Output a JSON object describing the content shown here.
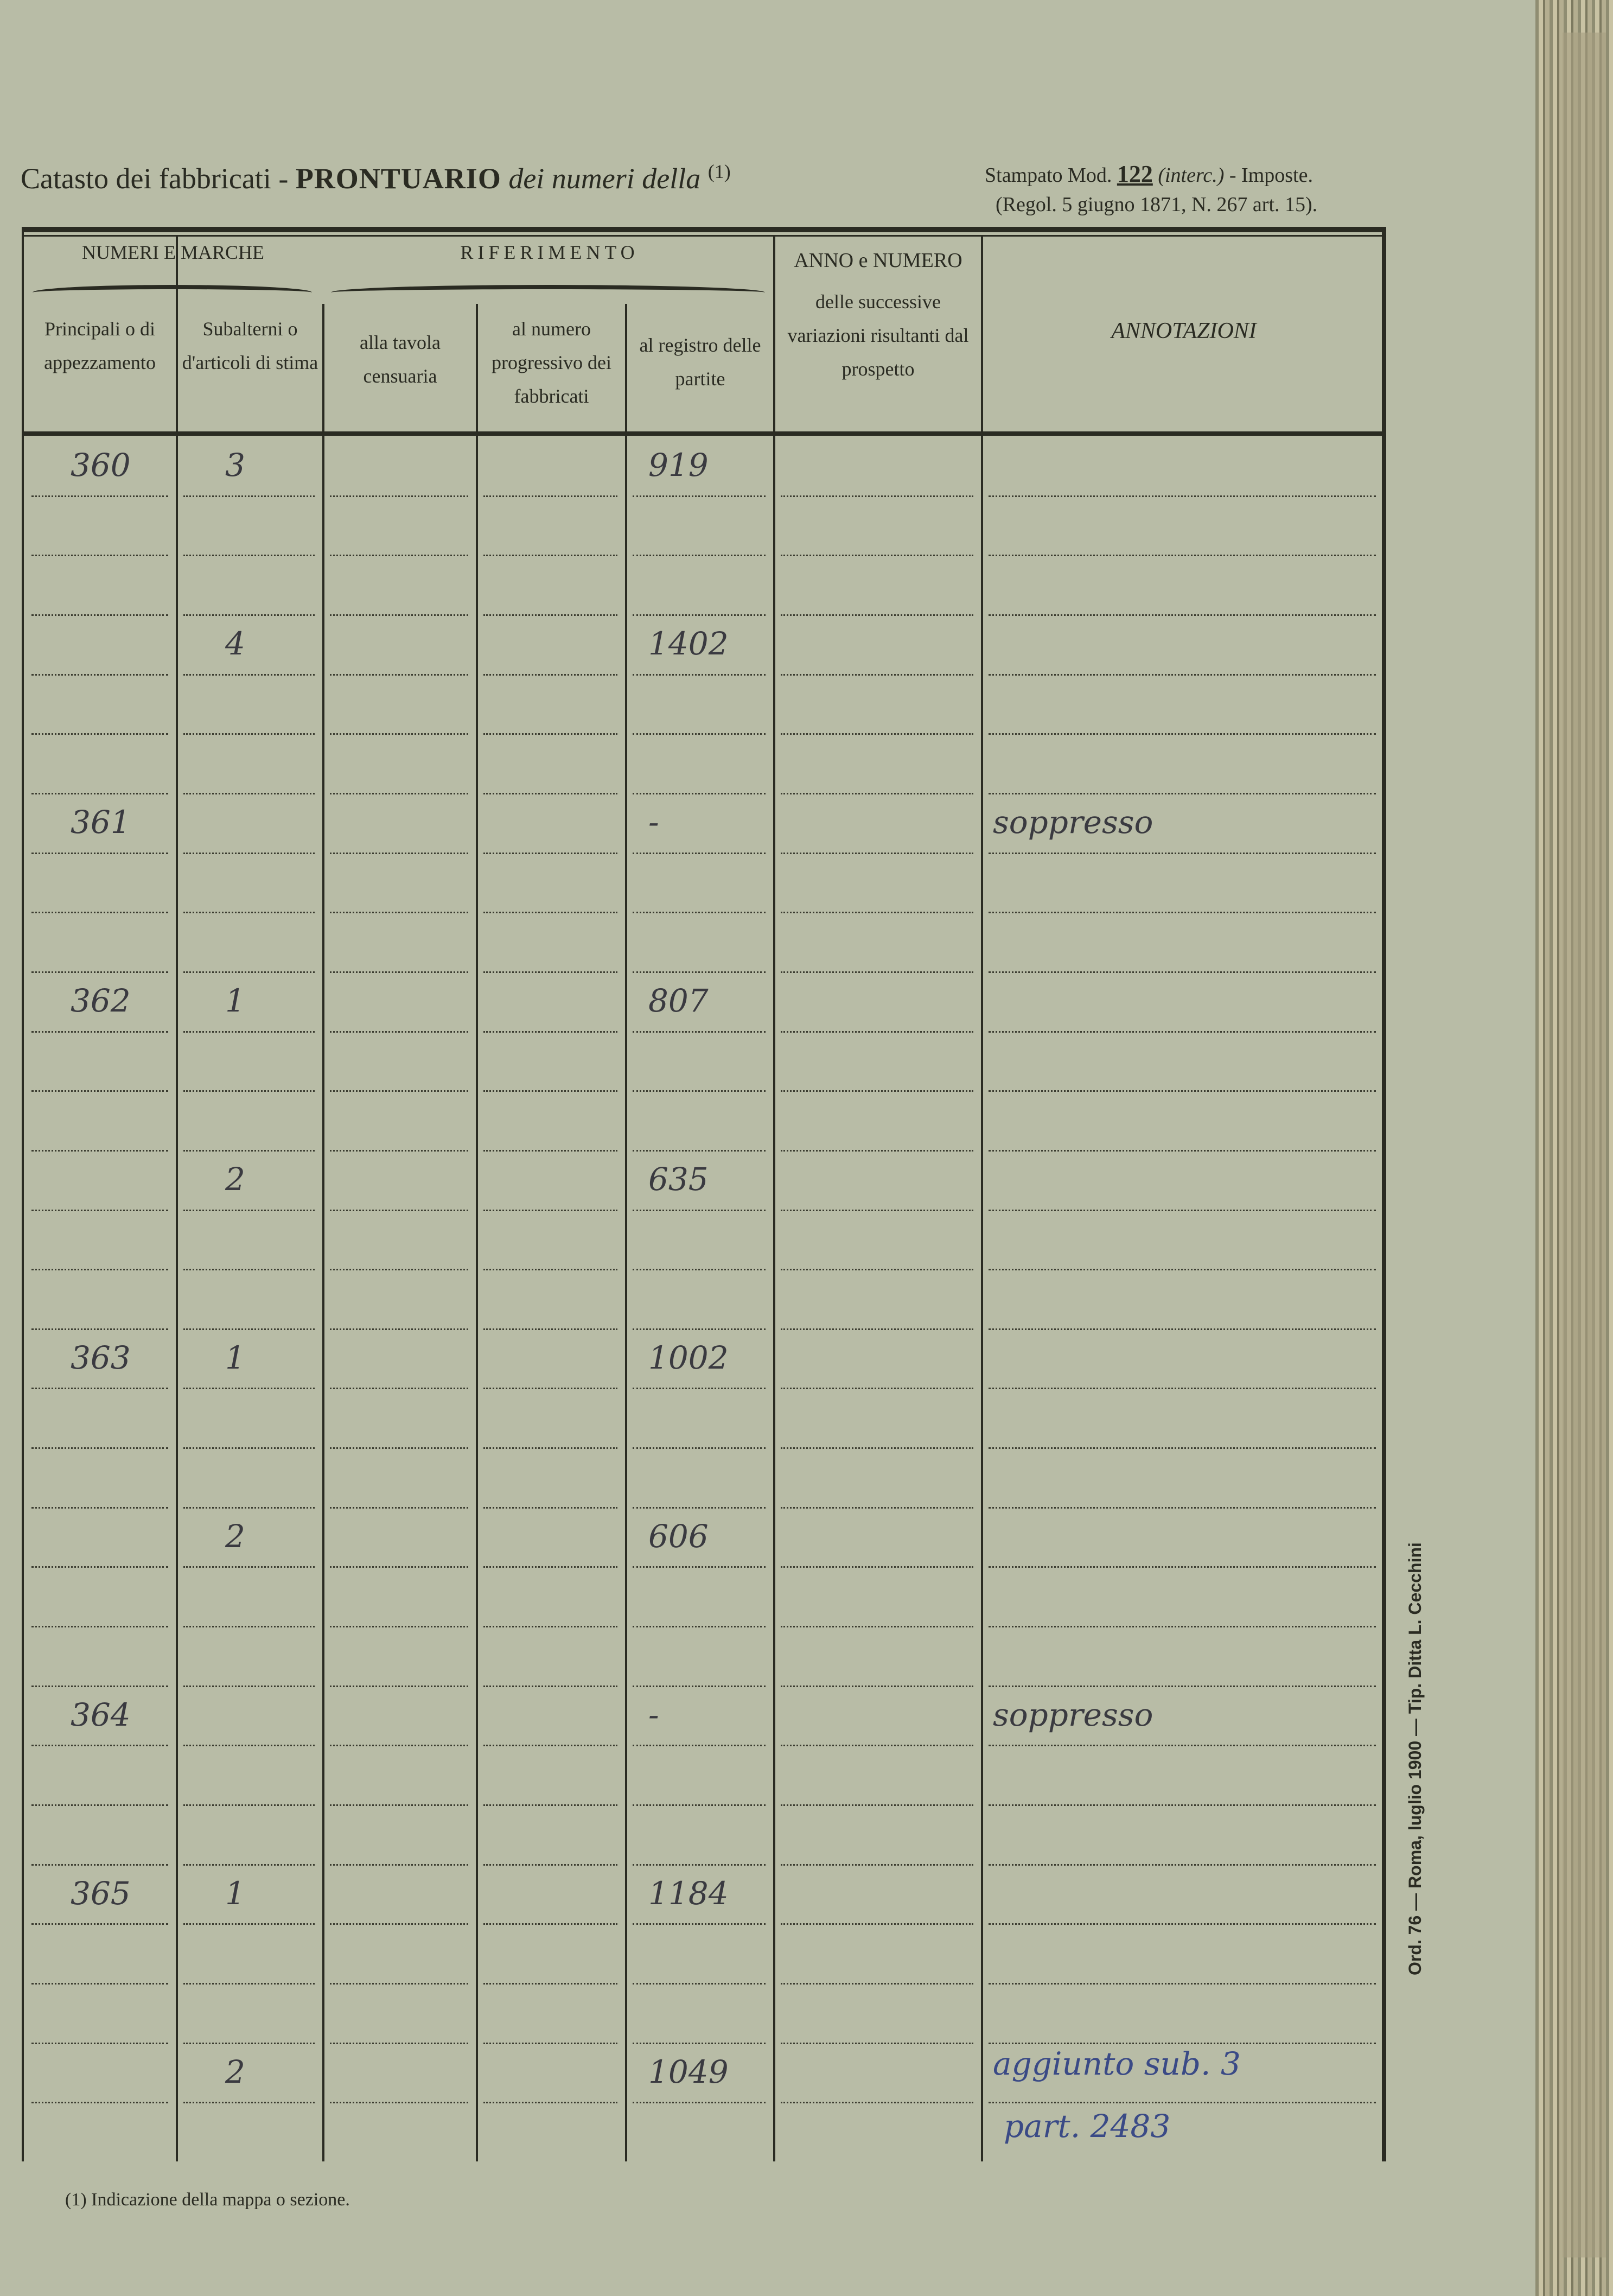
{
  "header": {
    "title_plain": "Catasto dei fabbricati -",
    "title_bold": "PRONTUARIO",
    "title_italic": "dei numeri della",
    "title_note": "(1)",
    "stamp_prefix": "Stampato Mod.",
    "stamp_number": "122",
    "stamp_italic": "(interc.)",
    "stamp_suffix": "- Imposte.",
    "regulation": "(Regol. 5 giugno 1871, N. 267 art. 15)."
  },
  "columns": {
    "group_numeri": "NUMERI E MARCHE",
    "group_riferimento": "RIFERIMENTO",
    "principali": "Principali o di appezzamento",
    "subalterni": "Subalterni o d'articoli di stima",
    "tavola": "alla tavola censuaria",
    "progressivo": "al numero progressivo dei fabbricati",
    "registro": "al registro delle partite",
    "anno": "ANNO e NUMERO",
    "anno_sub": "delle successive variazioni risultanti dal prospetto",
    "annotazioni": "ANNOTAZIONI"
  },
  "entries": [
    {
      "principale": "360",
      "subalterno": "3",
      "partita": "919",
      "annotazione": ""
    },
    {
      "principale": "",
      "subalterno": "4",
      "partita": "1402",
      "annotazione": ""
    },
    {
      "principale": "361",
      "subalterno": "",
      "partita": "-",
      "annotazione": "soppresso"
    },
    {
      "principale": "362",
      "subalterno": "1",
      "partita": "807",
      "annotazione": ""
    },
    {
      "principale": "",
      "subalterno": "2",
      "partita": "635",
      "annotazione": ""
    },
    {
      "principale": "363",
      "subalterno": "1",
      "partita": "1002",
      "annotazione": ""
    },
    {
      "principale": "",
      "subalterno": "2",
      "partita": "606",
      "annotazione": ""
    },
    {
      "principale": "364",
      "subalterno": "",
      "partita": "-",
      "annotazione": "soppresso"
    },
    {
      "principale": "365",
      "subalterno": "1",
      "partita": "1184",
      "annotazione": ""
    },
    {
      "principale": "",
      "subalterno": "2",
      "partita": "1049",
      "annotazione": "aggiunto sub. 3",
      "annotazione2": "part. 2483"
    }
  ],
  "footnote": "(1) Indicazione della mappa o sezione.",
  "printer": "Ord. 76 — Roma, luglio 1900 — Tip. Ditta L. Cecchini",
  "colors": {
    "paper": "#b8bca6",
    "ink": "#2a2b22",
    "blue_ink": "#3a4a86"
  }
}
